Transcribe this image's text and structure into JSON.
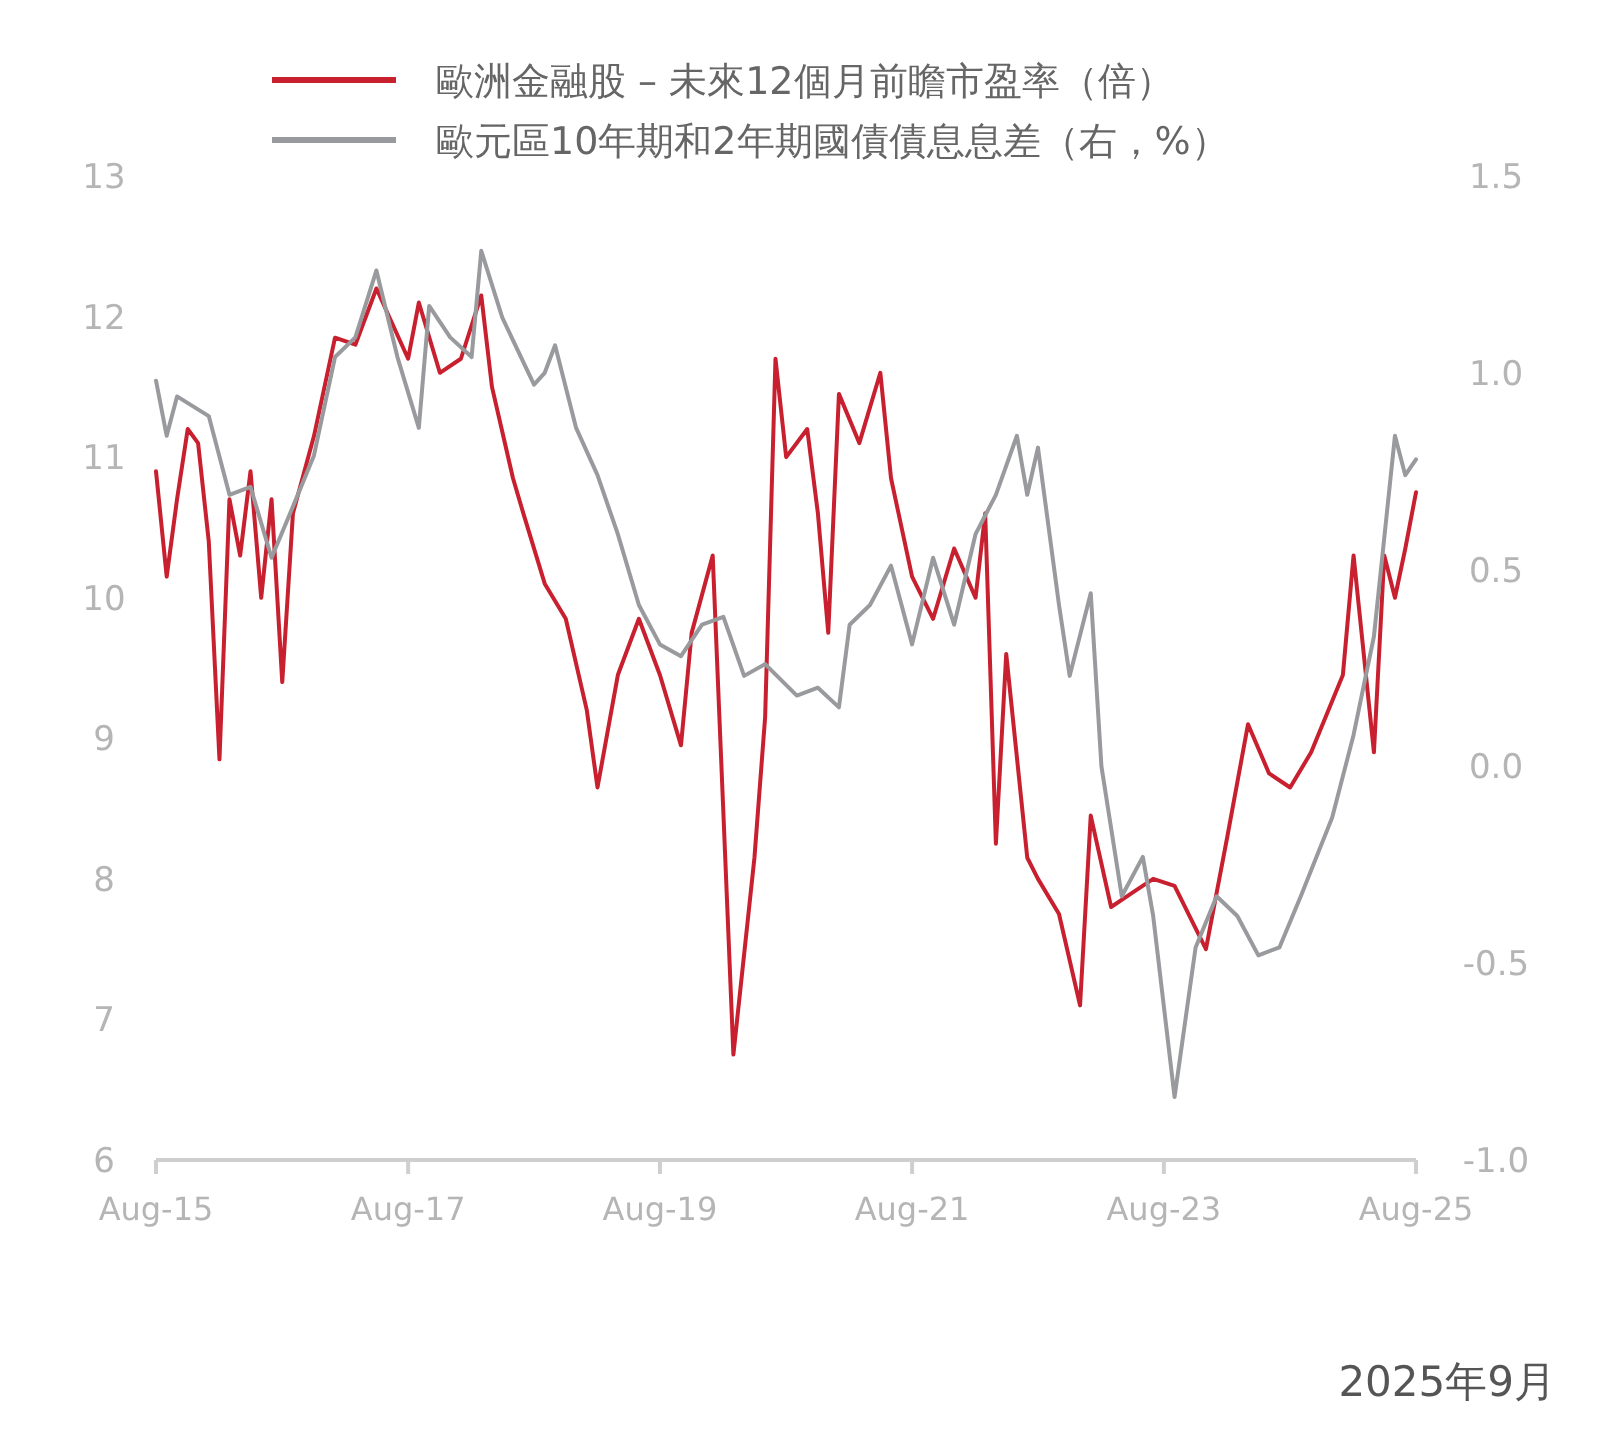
{
  "chart_data": {
    "type": "line",
    "legend": "top",
    "grid": false,
    "line_style": "solid",
    "marker": "none",
    "xlim": [
      "2015-08",
      "2025-08"
    ],
    "xticks": [
      {
        "value": "2015-08",
        "label": "Aug-15"
      },
      {
        "value": "2017-08",
        "label": "Aug-17"
      },
      {
        "value": "2019-08",
        "label": "Aug-19"
      },
      {
        "value": "2021-08",
        "label": "Aug-21"
      },
      {
        "value": "2023-08",
        "label": "Aug-23"
      },
      {
        "value": "2025-08",
        "label": "Aug-25"
      }
    ],
    "ylim": [
      6,
      13
    ],
    "yticks": [
      6,
      7,
      8,
      9,
      10,
      11,
      12,
      13
    ],
    "y2lim": [
      -1,
      1.5
    ],
    "y2ticks": [
      {
        "value": -1,
        "label": "-1.0"
      },
      {
        "value": -0.5,
        "label": "-0.5"
      },
      {
        "value": 0,
        "label": "0.0"
      },
      {
        "value": 0.5,
        "label": "0.5"
      },
      {
        "value": 1,
        "label": "1.0"
      },
      {
        "value": 1.5,
        "label": "1.5"
      }
    ],
    "annotations": [
      "2025年9月"
    ],
    "series": [
      {
        "name": "歐洲金融股 – 未來12個月前瞻市盈率（倍）",
        "color": "#c8202f",
        "x": [
          "2015-08",
          "2015-09",
          "2015-10",
          "2015-11",
          "2015-12",
          "2016-01",
          "2016-02",
          "2016-03",
          "2016-04",
          "2016-05",
          "2016-06",
          "2016-07",
          "2016-08",
          "2016-09",
          "2016-11",
          "2017-01",
          "2017-03",
          "2017-05",
          "2017-08",
          "2017-09",
          "2017-11",
          "2018-01",
          "2018-03",
          "2018-04",
          "2018-06",
          "2018-07",
          "2018-09",
          "2018-11",
          "2019-01",
          "2019-02",
          "2019-04",
          "2019-06",
          "2019-08",
          "2019-10",
          "2019-11",
          "2020-01",
          "2020-03",
          "2020-05",
          "2020-06",
          "2020-07",
          "2020-08",
          "2020-10",
          "2020-11",
          "2020-12",
          "2021-01",
          "2021-03",
          "2021-05",
          "2021-06",
          "2021-08",
          "2021-10",
          "2021-12",
          "2022-02",
          "2022-03",
          "2022-04",
          "2022-05",
          "2022-07",
          "2022-08",
          "2022-10",
          "2022-12",
          "2023-01",
          "2023-03",
          "2023-05",
          "2023-07",
          "2023-09",
          "2023-12",
          "2024-02",
          "2024-04",
          "2024-06",
          "2024-08",
          "2024-10",
          "2025-01",
          "2025-02",
          "2025-04",
          "2025-05",
          "2025-06",
          "2025-07",
          "2025-08"
        ],
        "values": [
          10.9,
          10.15,
          10.7,
          11.2,
          11.1,
          10.4,
          8.85,
          10.7,
          10.3,
          10.9,
          10.0,
          10.7,
          9.4,
          10.6,
          11.15,
          11.85,
          11.8,
          12.2,
          11.7,
          12.1,
          11.6,
          11.7,
          12.15,
          11.5,
          10.85,
          10.6,
          10.1,
          9.85,
          9.2,
          8.65,
          9.45,
          9.85,
          9.45,
          8.95,
          9.75,
          10.3,
          6.75,
          8.15,
          9.15,
          11.7,
          11.0,
          11.2,
          10.6,
          9.75,
          11.45,
          11.1,
          11.6,
          10.85,
          10.15,
          9.85,
          10.35,
          10.0,
          10.6,
          8.25,
          9.6,
          8.15,
          8.0,
          7.75,
          7.1,
          8.45,
          7.8,
          7.9,
          8.0,
          7.95,
          7.5,
          8.3,
          9.1,
          8.75,
          8.65,
          8.9,
          9.45,
          10.3,
          8.9,
          10.3,
          10.0,
          10.35,
          10.75
        ]
      },
      {
        "name": "歐元區10年期和2年期國債債息息差（右，%）",
        "color": "#999a9d",
        "axis": "y2",
        "x": [
          "2015-08",
          "2015-09",
          "2015-10",
          "2016-01",
          "2016-03",
          "2016-05",
          "2016-07",
          "2016-09",
          "2016-11",
          "2017-01",
          "2017-03",
          "2017-05",
          "2017-07",
          "2017-09",
          "2017-10",
          "2017-12",
          "2018-02",
          "2018-03",
          "2018-05",
          "2018-08",
          "2018-09",
          "2018-10",
          "2018-12",
          "2019-02",
          "2019-04",
          "2019-06",
          "2019-08",
          "2019-10",
          "2019-12",
          "2020-02",
          "2020-04",
          "2020-06",
          "2020-09",
          "2020-11",
          "2021-01",
          "2021-02",
          "2021-04",
          "2021-06",
          "2021-08",
          "2021-10",
          "2021-12",
          "2022-02",
          "2022-04",
          "2022-06",
          "2022-07",
          "2022-08",
          "2022-10",
          "2022-11",
          "2023-01",
          "2023-02",
          "2023-04",
          "2023-06",
          "2023-07",
          "2023-09",
          "2023-11",
          "2024-01",
          "2024-03",
          "2024-05",
          "2024-07",
          "2024-09",
          "2024-12",
          "2025-02",
          "2025-04",
          "2025-06",
          "2025-07",
          "2025-08"
        ],
        "values": [
          0.98,
          0.84,
          0.94,
          0.89,
          0.69,
          0.71,
          0.53,
          0.66,
          0.79,
          1.04,
          1.09,
          1.26,
          1.04,
          0.86,
          1.17,
          1.09,
          1.04,
          1.31,
          1.14,
          0.97,
          1.0,
          1.07,
          0.86,
          0.74,
          0.59,
          0.41,
          0.31,
          0.28,
          0.36,
          0.38,
          0.23,
          0.26,
          0.18,
          0.2,
          0.15,
          0.36,
          0.41,
          0.51,
          0.31,
          0.53,
          0.36,
          0.59,
          0.69,
          0.84,
          0.69,
          0.81,
          0.41,
          0.23,
          0.44,
          0.0,
          -0.33,
          -0.23,
          -0.38,
          -0.84,
          -0.46,
          -0.33,
          -0.38,
          -0.48,
          -0.46,
          -0.33,
          -0.13,
          0.08,
          0.33,
          0.84,
          0.74,
          0.78
        ]
      }
    ]
  }
}
